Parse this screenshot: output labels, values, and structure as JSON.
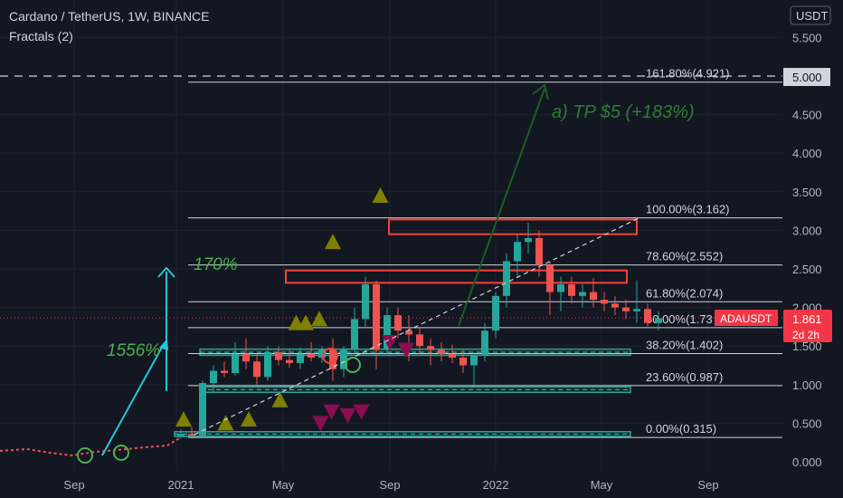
{
  "header": {
    "title": "Cardano / TetherUS, 1W, BINANCE",
    "indicator": "Fractals (2)"
  },
  "colors": {
    "background": "#131722",
    "text": "#d1d4dc",
    "up": "#26a69a",
    "down": "#ef5350",
    "fractal_up": "#808000",
    "fractal_down": "#880e4f",
    "annotation_green": "#4caf50",
    "arrow_blue": "#26c6da",
    "tp_green": "#1b5e20",
    "price_tag": "#f23645"
  },
  "chart_data": {
    "type": "candlestick",
    "symbol": "ADAUSDT",
    "y_axis": {
      "unit": "USDT",
      "ticks": [
        "0.000",
        "0.500",
        "1.000",
        "1.500",
        "2.000",
        "2.500",
        "3.000",
        "3.500",
        "4.000",
        "4.500",
        "5.000",
        "5.500"
      ],
      "range": [
        0,
        5.85
      ]
    },
    "x_axis": {
      "ticks": [
        "Sep",
        "2021",
        "May",
        "Sep",
        "2022",
        "May",
        "Sep"
      ]
    },
    "current_price": {
      "symbol_label": "ADAUSDT",
      "price": "1.861",
      "countdown": "2d 2h",
      "value": 1.861
    },
    "dashed_level": {
      "label": "5.000",
      "value": 5.0
    },
    "fib_levels": [
      {
        "label": "161.80%(4.921)",
        "value": 4.921
      },
      {
        "label": "100.00%(3.162)",
        "value": 3.162
      },
      {
        "label": "78.60%(2.552)",
        "value": 2.552
      },
      {
        "label": "61.80%(2.074)",
        "value": 2.074
      },
      {
        "label": "50.00%(1.73",
        "value": 1.7385
      },
      {
        "label": "38.20%(1.402)",
        "value": 1.402
      },
      {
        "label": "23.60%(0.987)",
        "value": 0.987
      },
      {
        "label": "0.00%(0.315)",
        "value": 0.315
      }
    ],
    "annotations": {
      "gain_1": "1556%",
      "gain_2": "170%",
      "target": "a) TP $5  (+183%)"
    },
    "fractals_up": [
      [
        0.2,
        0.55
      ],
      [
        3.3,
        0.5
      ],
      [
        5.0,
        0.55
      ],
      [
        7.3,
        0.8
      ],
      [
        8.5,
        1.8
      ],
      [
        9.2,
        1.8
      ],
      [
        10.2,
        1.85
      ],
      [
        11.2,
        2.85
      ],
      [
        14.7,
        3.45
      ]
    ],
    "fractals_down": [
      [
        10.3,
        0.5
      ],
      [
        11.1,
        0.65
      ],
      [
        12.3,
        0.6
      ],
      [
        13.3,
        0.65
      ],
      [
        15.4,
        1.55
      ],
      [
        16.6,
        1.45
      ]
    ],
    "candles": [
      {
        "o": 0.32,
        "h": 0.42,
        "l": 0.3,
        "c": 0.36
      },
      {
        "o": 0.36,
        "h": 0.45,
        "l": 0.32,
        "c": 0.34
      },
      {
        "o": 0.34,
        "h": 1.05,
        "l": 0.33,
        "c": 1.02
      },
      {
        "o": 1.02,
        "h": 1.25,
        "l": 0.9,
        "c": 1.18
      },
      {
        "o": 1.18,
        "h": 1.3,
        "l": 1.1,
        "c": 1.15
      },
      {
        "o": 1.15,
        "h": 1.55,
        "l": 1.12,
        "c": 1.4
      },
      {
        "o": 1.4,
        "h": 1.6,
        "l": 1.2,
        "c": 1.3
      },
      {
        "o": 1.3,
        "h": 1.4,
        "l": 1.0,
        "c": 1.1
      },
      {
        "o": 1.1,
        "h": 1.5,
        "l": 1.05,
        "c": 1.42
      },
      {
        "o": 1.42,
        "h": 1.5,
        "l": 1.25,
        "c": 1.32
      },
      {
        "o": 1.32,
        "h": 1.45,
        "l": 1.22,
        "c": 1.28
      },
      {
        "o": 1.28,
        "h": 1.48,
        "l": 1.2,
        "c": 1.4
      },
      {
        "o": 1.4,
        "h": 1.55,
        "l": 1.3,
        "c": 1.35
      },
      {
        "o": 1.35,
        "h": 1.5,
        "l": 1.28,
        "c": 1.45
      },
      {
        "o": 1.45,
        "h": 1.6,
        "l": 1.05,
        "c": 1.2
      },
      {
        "o": 1.2,
        "h": 1.5,
        "l": 1.1,
        "c": 1.45
      },
      {
        "o": 1.45,
        "h": 2.0,
        "l": 1.4,
        "c": 1.85
      },
      {
        "o": 1.85,
        "h": 2.4,
        "l": 1.75,
        "c": 2.3
      },
      {
        "o": 2.3,
        "h": 2.35,
        "l": 1.2,
        "c": 1.45
      },
      {
        "o": 1.45,
        "h": 2.0,
        "l": 1.4,
        "c": 1.9
      },
      {
        "o": 1.9,
        "h": 2.0,
        "l": 1.6,
        "c": 1.7
      },
      {
        "o": 1.7,
        "h": 1.9,
        "l": 1.3,
        "c": 1.65
      },
      {
        "o": 1.65,
        "h": 1.75,
        "l": 1.4,
        "c": 1.5
      },
      {
        "o": 1.5,
        "h": 1.6,
        "l": 1.25,
        "c": 1.45
      },
      {
        "o": 1.45,
        "h": 1.55,
        "l": 1.3,
        "c": 1.4
      },
      {
        "o": 1.4,
        "h": 1.52,
        "l": 1.28,
        "c": 1.35
      },
      {
        "o": 1.35,
        "h": 1.45,
        "l": 1.15,
        "c": 1.25
      },
      {
        "o": 1.25,
        "h": 1.42,
        "l": 1.0,
        "c": 1.38
      },
      {
        "o": 1.38,
        "h": 1.8,
        "l": 1.3,
        "c": 1.7
      },
      {
        "o": 1.7,
        "h": 2.2,
        "l": 1.6,
        "c": 2.15
      },
      {
        "o": 2.15,
        "h": 2.7,
        "l": 2.0,
        "c": 2.6
      },
      {
        "o": 2.6,
        "h": 2.95,
        "l": 2.4,
        "c": 2.85
      },
      {
        "o": 2.85,
        "h": 3.1,
        "l": 2.7,
        "c": 2.9
      },
      {
        "o": 2.9,
        "h": 3.0,
        "l": 2.4,
        "c": 2.55
      },
      {
        "o": 2.55,
        "h": 2.6,
        "l": 1.9,
        "c": 2.2
      },
      {
        "o": 2.2,
        "h": 2.4,
        "l": 1.95,
        "c": 2.3
      },
      {
        "o": 2.3,
        "h": 2.4,
        "l": 2.05,
        "c": 2.15
      },
      {
        "o": 2.15,
        "h": 2.3,
        "l": 2.0,
        "c": 2.2
      },
      {
        "o": 2.2,
        "h": 2.38,
        "l": 2.0,
        "c": 2.1
      },
      {
        "o": 2.1,
        "h": 2.2,
        "l": 1.95,
        "c": 2.05
      },
      {
        "o": 2.05,
        "h": 2.15,
        "l": 1.9,
        "c": 2.0
      },
      {
        "o": 2.0,
        "h": 2.1,
        "l": 1.85,
        "c": 1.95
      },
      {
        "o": 1.95,
        "h": 2.35,
        "l": 1.8,
        "c": 1.98
      },
      {
        "o": 1.98,
        "h": 2.05,
        "l": 1.75,
        "c": 1.8
      },
      {
        "o": 1.8,
        "h": 1.95,
        "l": 1.7,
        "c": 1.861
      }
    ]
  }
}
